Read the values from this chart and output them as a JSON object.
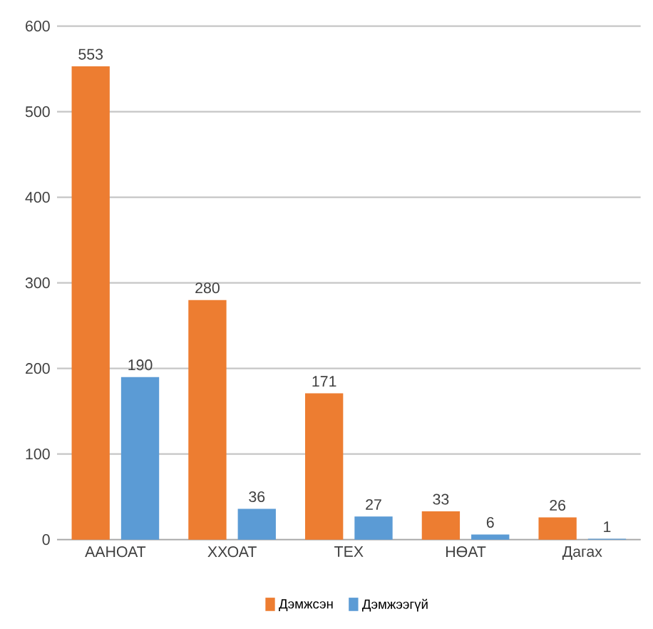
{
  "chart_data": {
    "type": "bar",
    "categories": [
      "ААНОАТ",
      "ХХОАТ",
      "ТЕХ",
      "НӨАТ",
      "Дагах"
    ],
    "series": [
      {
        "name": "Дэмжсэн",
        "color": "#ed7d31",
        "values": [
          553,
          280,
          171,
          33,
          26
        ]
      },
      {
        "name": "Дэмжээгүй",
        "color": "#5b9bd5",
        "values": [
          190,
          36,
          27,
          6,
          1
        ]
      }
    ],
    "ylim": [
      0,
      600
    ],
    "yticks": [
      0,
      100,
      200,
      300,
      400,
      500,
      600
    ],
    "grid": "y",
    "legend": "bottom",
    "data_labels": true
  }
}
